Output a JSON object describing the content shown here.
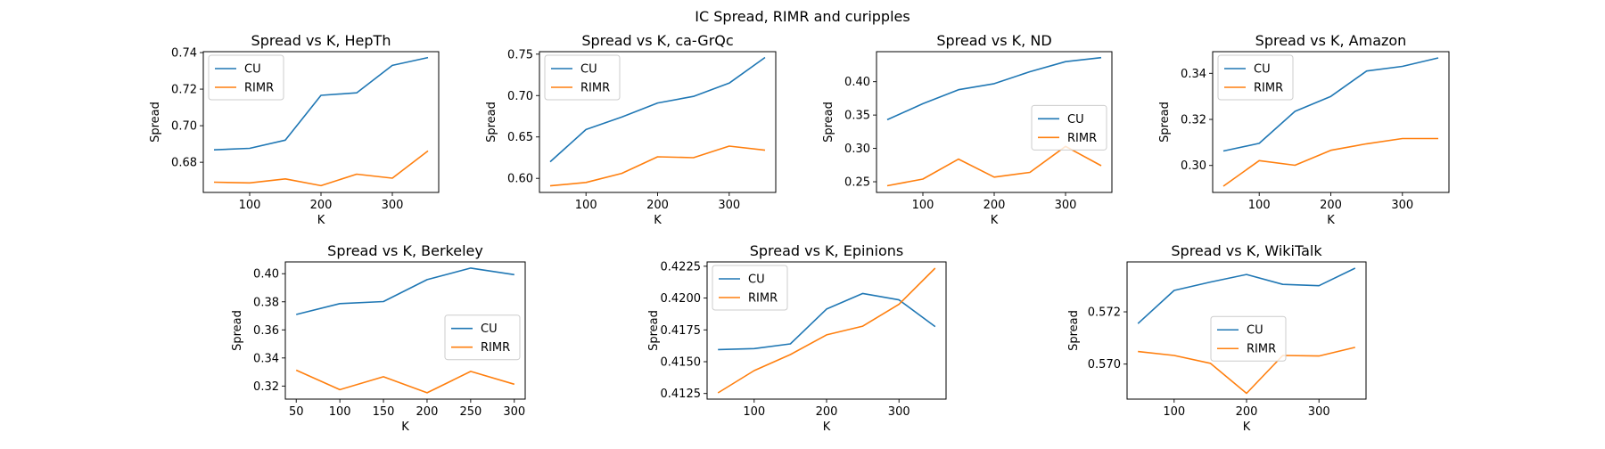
{
  "figure": {
    "suptitle": "IC Spread, RIMR and curipples"
  },
  "colors": {
    "CU": "#1f77b4",
    "RIMR": "#ff7f0e"
  },
  "chart_data": [
    {
      "type": "line",
      "title": "Spread vs K, HepTh",
      "xlabel": "K",
      "ylabel": "Spread",
      "xlim": [
        35,
        365
      ],
      "ylim": [
        0.6635,
        0.7405
      ],
      "xticks": [
        100,
        200,
        300
      ],
      "yticks": [
        0.68,
        0.7,
        0.72,
        0.74
      ],
      "ytick_labels": [
        "0.68",
        "0.70",
        "0.72",
        "0.74"
      ],
      "legend_placement": "upper-left",
      "x": [
        50,
        100,
        150,
        200,
        250,
        300,
        350
      ],
      "series": [
        {
          "name": "CU",
          "values": [
            0.6868,
            0.6876,
            0.6921,
            0.7166,
            0.718,
            0.733,
            0.7373
          ]
        },
        {
          "name": "RIMR",
          "values": [
            0.6691,
            0.6687,
            0.6709,
            0.6672,
            0.6735,
            0.6713,
            0.6862
          ]
        }
      ]
    },
    {
      "type": "line",
      "title": "Spread vs K, ca-GrQc",
      "xlabel": "K",
      "ylabel": "Spread",
      "xlim": [
        35,
        365
      ],
      "ylim": [
        0.583,
        0.753
      ],
      "xticks": [
        100,
        200,
        300
      ],
      "yticks": [
        0.6,
        0.65,
        0.7,
        0.75
      ],
      "ytick_labels": [
        "0.60",
        "0.65",
        "0.70",
        "0.75"
      ],
      "legend_placement": "upper-left",
      "x": [
        50,
        100,
        150,
        200,
        250,
        300,
        350
      ],
      "series": [
        {
          "name": "CU",
          "values": [
            0.62,
            0.659,
            0.674,
            0.691,
            0.699,
            0.715,
            0.746
          ]
        },
        {
          "name": "RIMR",
          "values": [
            0.591,
            0.595,
            0.606,
            0.626,
            0.625,
            0.639,
            0.634
          ]
        }
      ]
    },
    {
      "type": "line",
      "title": "Spread vs K, ND",
      "xlabel": "K",
      "ylabel": "Spread",
      "xlim": [
        35,
        365
      ],
      "ylim": [
        0.234,
        0.445
      ],
      "xticks": [
        100,
        200,
        300
      ],
      "yticks": [
        0.25,
        0.3,
        0.35,
        0.4
      ],
      "ytick_labels": [
        "0.25",
        "0.30",
        "0.35",
        "0.40"
      ],
      "legend_placement": "center-right",
      "x": [
        50,
        100,
        150,
        200,
        250,
        300,
        350
      ],
      "series": [
        {
          "name": "CU",
          "values": [
            0.343,
            0.367,
            0.388,
            0.397,
            0.415,
            0.43,
            0.436
          ]
        },
        {
          "name": "RIMR",
          "values": [
            0.244,
            0.254,
            0.284,
            0.257,
            0.264,
            0.303,
            0.274
          ]
        }
      ]
    },
    {
      "type": "line",
      "title": "Spread vs K, Amazon",
      "xlabel": "K",
      "ylabel": "Spread",
      "xlim": [
        35,
        365
      ],
      "ylim": [
        0.2883,
        0.3494
      ],
      "xticks": [
        100,
        200,
        300
      ],
      "yticks": [
        0.3,
        0.32,
        0.34
      ],
      "ytick_labels": [
        "0.30",
        "0.32",
        "0.34"
      ],
      "legend_placement": "upper-left",
      "x": [
        50,
        100,
        150,
        200,
        250,
        300,
        350
      ],
      "series": [
        {
          "name": "CU",
          "values": [
            0.3063,
            0.3096,
            0.3235,
            0.33,
            0.341,
            0.343,
            0.3467
          ]
        },
        {
          "name": "RIMR",
          "values": [
            0.291,
            0.3021,
            0.3001,
            0.3066,
            0.3094,
            0.3117,
            0.3117
          ]
        }
      ]
    },
    {
      "type": "line",
      "title": "Spread vs K, Berkeley",
      "xlabel": "K",
      "ylabel": "Spread",
      "xlim": [
        37.5,
        312.5
      ],
      "ylim": [
        0.3107,
        0.4084
      ],
      "xticks": [
        50,
        100,
        150,
        200,
        250,
        300
      ],
      "yticks": [
        0.32,
        0.34,
        0.36,
        0.38,
        0.4
      ],
      "ytick_labels": [
        "0.32",
        "0.34",
        "0.36",
        "0.38",
        "0.40"
      ],
      "legend_placement": "center-right",
      "x": [
        50,
        100,
        150,
        200,
        250,
        300
      ],
      "series": [
        {
          "name": "CU",
          "values": [
            0.371,
            0.3787,
            0.3802,
            0.3958,
            0.404,
            0.3993
          ]
        },
        {
          "name": "RIMR",
          "values": [
            0.3313,
            0.3174,
            0.3266,
            0.3152,
            0.3304,
            0.3213
          ]
        }
      ]
    },
    {
      "type": "line",
      "title": "Spread vs K, Epinions",
      "xlabel": "K",
      "ylabel": "Spread",
      "xlim": [
        35,
        365
      ],
      "ylim": [
        0.41206,
        0.42284
      ],
      "xticks": [
        100,
        200,
        300
      ],
      "yticks": [
        0.4125,
        0.415,
        0.4175,
        0.42,
        0.4225
      ],
      "ytick_labels": [
        "0.4125",
        "0.4150",
        "0.4175",
        "0.4200",
        "0.4225"
      ],
      "legend_placement": "upper-left",
      "x": [
        50,
        100,
        150,
        200,
        250,
        300,
        350
      ],
      "series": [
        {
          "name": "CU",
          "values": [
            0.41595,
            0.41603,
            0.4164,
            0.41914,
            0.42036,
            0.41986,
            0.41776
          ]
        },
        {
          "name": "RIMR",
          "values": [
            0.41255,
            0.4143,
            0.41556,
            0.41711,
            0.41779,
            0.41951,
            0.42235
          ]
        }
      ]
    },
    {
      "type": "line",
      "title": "Spread vs K, WikiTalk",
      "xlabel": "K",
      "ylabel": "Spread",
      "xlim": [
        35,
        365
      ],
      "ylim": [
        0.56866,
        0.57391
      ],
      "xticks": [
        100,
        200,
        300
      ],
      "yticks": [
        0.57,
        0.572
      ],
      "ytick_labels": [
        "0.570",
        "0.572"
      ],
      "legend_placement": "center",
      "x": [
        50,
        100,
        150,
        200,
        250,
        300,
        350
      ],
      "series": [
        {
          "name": "CU",
          "values": [
            0.57155,
            0.57282,
            0.57314,
            0.57343,
            0.57305,
            0.573,
            0.57367
          ]
        },
        {
          "name": "RIMR",
          "values": [
            0.57048,
            0.57033,
            0.57003,
            0.56888,
            0.57033,
            0.57031,
            0.57064
          ]
        }
      ]
    }
  ]
}
